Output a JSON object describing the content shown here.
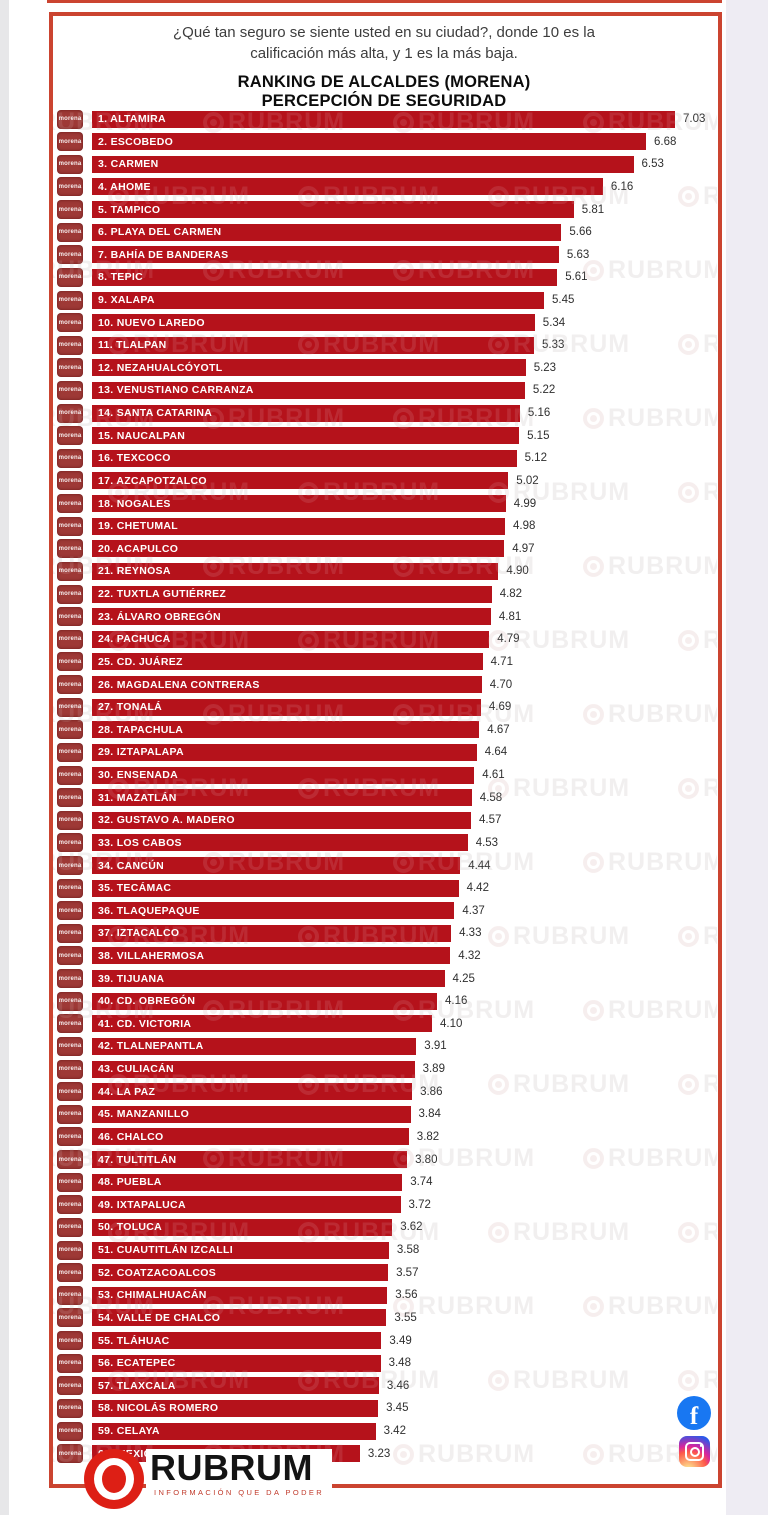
{
  "header": {
    "survey_question_line1": "¿Qué tan seguro se siente usted en su ciudad?, donde 10 es la",
    "survey_question_line2": "calificación más alta, y  1 es la más baja.",
    "title_line1": "RANKING DE ALCALDES  (MORENA)",
    "title_line2": "PERCEPCIÓN DE SEGURIDAD"
  },
  "chart_data": {
    "type": "bar",
    "orientation": "horizontal",
    "title": "RANKING DE ALCALDES (MORENA) — PERCEPCIÓN DE SEGURIDAD",
    "scale_note": "Calificación de 1 (más baja) a 10 (más alta)",
    "xlim": [
      0,
      7.03
    ],
    "bar_color": "#b5121b",
    "categories": [
      "1. ALTAMIRA",
      "2. ESCOBEDO",
      "3. CARMEN",
      "4. AHOME",
      "5. TAMPICO",
      "6. PLAYA DEL CARMEN",
      "7. BAHÍA DE BANDERAS",
      "8. TEPIC",
      "9. XALAPA",
      "10. NUEVO LAREDO",
      "11. TLALPAN",
      "12. NEZAHUALCÓYOTL",
      "13. VENUSTIANO CARRANZA",
      "14. SANTA CATARINA",
      "15. NAUCALPAN",
      "16. TEXCOCO",
      "17. AZCAPOTZALCO",
      "18. NOGALES",
      "19. CHETUMAL",
      "20. ACAPULCO",
      "21. REYNOSA",
      "22. TUXTLA GUTIÉRREZ",
      "23. ÁLVARO OBREGÓN",
      "24. PACHUCA",
      "25. CD. JUÁREZ",
      "26. MAGDALENA CONTRERAS",
      "27. TONALÁ",
      "28. TAPACHULA",
      "29. IZTAPALAPA",
      "30. ENSENADA",
      "31. MAZATLÁN",
      "32. GUSTAVO A. MADERO",
      "33. LOS CABOS",
      "34. CANCÚN",
      "35. TECÁMAC",
      "36. TLAQUEPAQUE",
      "37. IZTACALCO",
      "38. VILLAHERMOSA",
      "39. TIJUANA",
      "40. CD. OBREGÓN",
      "41. CD. VICTORIA",
      "42. TLALNEPANTLA",
      "43. CULIACÁN",
      "44. LA PAZ",
      "45. MANZANILLO",
      "46. CHALCO",
      "47. TULTITLÁN",
      "48. PUEBLA",
      "49. IXTAPALUCA",
      "50. TOLUCA",
      "51. CUAUTITLÁN IZCALLI",
      "52. COATZACOALCOS",
      "53. CHIMALHUACÁN",
      "54. VALLE DE CHALCO",
      "55. TLÁHUAC",
      "56. ECATEPEC",
      "57. TLAXCALA",
      "58. NICOLÁS ROMERO",
      "59. CELAYA",
      "60. MEXICALI"
    ],
    "values": [
      7.03,
      6.68,
      6.53,
      6.16,
      5.81,
      5.66,
      5.63,
      5.61,
      5.45,
      5.34,
      5.33,
      5.23,
      5.22,
      5.16,
      5.15,
      5.12,
      5.02,
      4.99,
      4.98,
      4.97,
      4.9,
      4.82,
      4.81,
      4.79,
      4.71,
      4.7,
      4.69,
      4.67,
      4.64,
      4.61,
      4.58,
      4.57,
      4.53,
      4.44,
      4.42,
      4.37,
      4.33,
      4.32,
      4.25,
      4.16,
      4.1,
      3.91,
      3.89,
      3.86,
      3.84,
      3.82,
      3.8,
      3.74,
      3.72,
      3.62,
      3.58,
      3.57,
      3.56,
      3.55,
      3.49,
      3.48,
      3.46,
      3.45,
      3.42,
      3.23
    ]
  },
  "party_badge": {
    "label": "morena",
    "color": "#9e3936"
  },
  "watermark": {
    "text": "RUBRUM"
  },
  "footer": {
    "brand": "RUBRUM",
    "tagline": "INFORMACIÓN QUE DA PODER"
  },
  "social": {
    "facebook_glyph": "f"
  },
  "colors": {
    "frame": "#cb4430",
    "bar": "#b5121b",
    "logo_red": "#dd1f15",
    "facebook_blue": "#1877f2"
  }
}
